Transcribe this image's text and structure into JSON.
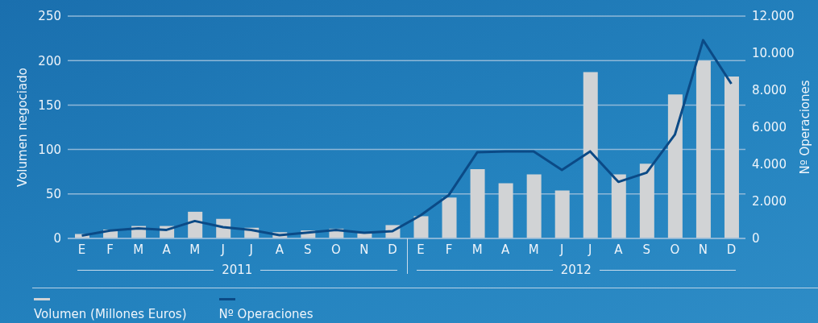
{
  "chart_data": {
    "type": "bar",
    "ylabel": "Volumen negociado",
    "y2label": "Nº Operaciones",
    "categories": [
      "E",
      "F",
      "M",
      "A",
      "M",
      "J",
      "J",
      "A",
      "S",
      "O",
      "N",
      "D",
      "E",
      "F",
      "M",
      "A",
      "M",
      "J",
      "J",
      "A",
      "S",
      "O",
      "N",
      "D"
    ],
    "series": [
      {
        "name": "Volumen (Millones Euros)",
        "color": "#d1d3d5",
        "values": [
          5,
          10,
          14,
          14,
          30,
          22,
          12,
          7,
          9,
          11,
          6,
          15,
          25,
          46,
          78,
          62,
          72,
          54,
          187,
          72,
          84,
          162,
          200,
          182
        ]
      },
      {
        "name": "Nº Operaciones",
        "type": "line",
        "axis": "y2",
        "color": "#0b4a86",
        "values": [
          150,
          420,
          540,
          460,
          940,
          610,
          460,
          170,
          320,
          460,
          300,
          390,
          1250,
          2350,
          4650,
          4700,
          4700,
          3700,
          4700,
          3050,
          3550,
          5600,
          10700,
          8350
        ]
      }
    ],
    "ylim": [
      0,
      250
    ],
    "yticks": [
      0,
      50,
      100,
      150,
      200,
      250
    ],
    "y2lim": [
      0,
      12000
    ],
    "y2ticks": [
      {
        "value": 0,
        "label": "0"
      },
      {
        "value": 2000,
        "label": "2.000"
      },
      {
        "value": 4000,
        "label": "4.000"
      },
      {
        "value": 6000,
        "label": "6.000"
      },
      {
        "value": 8000,
        "label": "8.000"
      },
      {
        "value": 10000,
        "label": "10.000"
      },
      {
        "value": 12000,
        "label": "12.000"
      }
    ],
    "annotations": [
      "2011",
      "2012"
    ],
    "grid": "y",
    "legend": "bottom left",
    "marker": "none",
    "line_style": "solid"
  }
}
